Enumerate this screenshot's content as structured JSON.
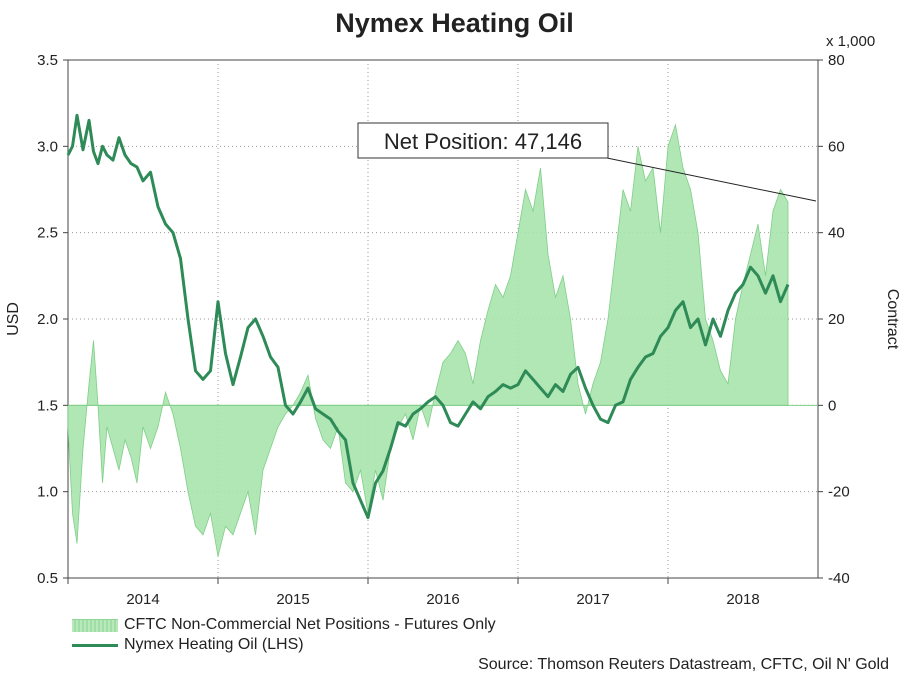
{
  "title": "Nymex Heating Oil",
  "y_left_label": "USD",
  "y_right_label": "Contract",
  "y_right_multiplier": "x 1,000",
  "annotation": "Net Position: 47,146",
  "legend": {
    "area": "CFTC Non-Commercial Net Positions - Futures Only",
    "line": "Nymex Heating Oil (LHS)"
  },
  "source": "Source: Thomson Reuters Datastream, CFTC, Oil N' Gold",
  "colors": {
    "area_fill": "#a8e3ad",
    "area_edge": "#7fcf88",
    "line": "#2e8b57"
  },
  "chart_data": {
    "type": "line",
    "x_range": [
      2013.5,
      2018.5
    ],
    "x_ticks": [
      "2014",
      "2015",
      "2016",
      "2017",
      "2018"
    ],
    "y_left_ticks": [
      "0.5",
      "1.0",
      "1.5",
      "2.0",
      "2.5",
      "3.0",
      "3.5"
    ],
    "y_left_range": [
      0.5,
      3.5
    ],
    "y_right_ticks": [
      "-40",
      "-20",
      "0",
      "20",
      "40",
      "60",
      "80"
    ],
    "y_right_range": [
      -40,
      80
    ],
    "grid": true,
    "series": [
      {
        "name": "CFTC Non-Commercial Net Positions - Futures Only",
        "axis": "right",
        "kind": "area",
        "x": [
          2013.5,
          2013.53,
          2013.56,
          2013.6,
          2013.64,
          2013.67,
          2013.7,
          2013.73,
          2013.76,
          2013.8,
          2013.84,
          2013.88,
          2013.92,
          2013.96,
          2014.0,
          2014.05,
          2014.1,
          2014.15,
          2014.2,
          2014.25,
          2014.3,
          2014.35,
          2014.4,
          2014.45,
          2014.5,
          2014.55,
          2014.6,
          2014.65,
          2014.7,
          2014.75,
          2014.8,
          2014.85,
          2014.9,
          2014.95,
          2015.0,
          2015.05,
          2015.1,
          2015.15,
          2015.2,
          2015.25,
          2015.3,
          2015.35,
          2015.4,
          2015.45,
          2015.5,
          2015.55,
          2015.6,
          2015.65,
          2015.7,
          2015.75,
          2015.8,
          2015.85,
          2015.9,
          2015.95,
          2016.0,
          2016.05,
          2016.1,
          2016.15,
          2016.2,
          2016.25,
          2016.3,
          2016.35,
          2016.4,
          2016.45,
          2016.5,
          2016.55,
          2016.6,
          2016.65,
          2016.7,
          2016.75,
          2016.8,
          2016.85,
          2016.9,
          2016.95,
          2017.0,
          2017.05,
          2017.1,
          2017.15,
          2017.2,
          2017.25,
          2017.3,
          2017.35,
          2017.4,
          2017.45,
          2017.5,
          2017.55,
          2017.6,
          2017.65,
          2017.7,
          2017.75,
          2017.8,
          2017.85,
          2017.9,
          2017.95,
          2018.0,
          2018.05,
          2018.1,
          2018.15,
          2018.2,
          2018.25,
          2018.3
        ],
        "values": [
          -5,
          -25,
          -32,
          -10,
          5,
          15,
          0,
          -18,
          -5,
          -10,
          -15,
          -8,
          -12,
          -18,
          -5,
          -10,
          -5,
          3,
          -2,
          -10,
          -20,
          -28,
          -30,
          -25,
          -35,
          -28,
          -30,
          -25,
          -20,
          -30,
          -15,
          -10,
          -5,
          -2,
          0,
          3,
          7,
          -3,
          -8,
          -10,
          -5,
          -18,
          -20,
          -15,
          -25,
          -15,
          -22,
          -10,
          -5,
          -2,
          -8,
          0,
          -5,
          3,
          10,
          12,
          15,
          12,
          5,
          15,
          22,
          28,
          25,
          30,
          40,
          50,
          45,
          55,
          35,
          25,
          30,
          20,
          5,
          -2,
          5,
          10,
          20,
          35,
          50,
          45,
          60,
          52,
          55,
          40,
          60,
          65,
          55,
          50,
          40,
          20,
          15,
          8,
          5,
          20,
          28,
          35,
          42,
          30,
          45,
          50,
          47.1
        ]
      },
      {
        "name": "Nymex Heating Oil (LHS)",
        "axis": "left",
        "kind": "line",
        "x": [
          2013.5,
          2013.53,
          2013.56,
          2013.6,
          2013.64,
          2013.67,
          2013.7,
          2013.73,
          2013.76,
          2013.8,
          2013.84,
          2013.88,
          2013.92,
          2013.96,
          2014.0,
          2014.05,
          2014.1,
          2014.15,
          2014.2,
          2014.25,
          2014.3,
          2014.35,
          2014.4,
          2014.45,
          2014.5,
          2014.55,
          2014.6,
          2014.65,
          2014.7,
          2014.75,
          2014.8,
          2014.85,
          2014.9,
          2014.95,
          2015.0,
          2015.05,
          2015.1,
          2015.15,
          2015.2,
          2015.25,
          2015.3,
          2015.35,
          2015.4,
          2015.45,
          2015.5,
          2015.55,
          2015.6,
          2015.65,
          2015.7,
          2015.75,
          2015.8,
          2015.85,
          2015.9,
          2015.95,
          2016.0,
          2016.05,
          2016.1,
          2016.15,
          2016.2,
          2016.25,
          2016.3,
          2016.35,
          2016.4,
          2016.45,
          2016.5,
          2016.55,
          2016.6,
          2016.65,
          2016.7,
          2016.75,
          2016.8,
          2016.85,
          2016.9,
          2016.95,
          2017.0,
          2017.05,
          2017.1,
          2017.15,
          2017.2,
          2017.25,
          2017.3,
          2017.35,
          2017.4,
          2017.45,
          2017.5,
          2017.55,
          2017.6,
          2017.65,
          2017.7,
          2017.75,
          2017.8,
          2017.85,
          2017.9,
          2017.95,
          2018.0,
          2018.05,
          2018.1,
          2018.15,
          2018.2,
          2018.25,
          2018.3
        ],
        "values": [
          2.95,
          3.0,
          3.18,
          2.98,
          3.15,
          2.97,
          2.9,
          3.0,
          2.95,
          2.92,
          3.05,
          2.95,
          2.9,
          2.88,
          2.8,
          2.85,
          2.65,
          2.55,
          2.5,
          2.35,
          2.0,
          1.7,
          1.65,
          1.7,
          2.1,
          1.8,
          1.62,
          1.78,
          1.95,
          2.0,
          1.9,
          1.78,
          1.72,
          1.5,
          1.45,
          1.52,
          1.6,
          1.48,
          1.45,
          1.42,
          1.35,
          1.3,
          1.05,
          0.95,
          0.85,
          1.05,
          1.12,
          1.25,
          1.4,
          1.38,
          1.45,
          1.48,
          1.52,
          1.55,
          1.5,
          1.4,
          1.38,
          1.45,
          1.52,
          1.48,
          1.55,
          1.58,
          1.62,
          1.6,
          1.62,
          1.7,
          1.65,
          1.6,
          1.55,
          1.62,
          1.58,
          1.68,
          1.72,
          1.6,
          1.5,
          1.42,
          1.4,
          1.5,
          1.52,
          1.65,
          1.72,
          1.78,
          1.8,
          1.9,
          1.95,
          2.05,
          2.1,
          1.95,
          2.0,
          1.85,
          2.0,
          1.9,
          2.05,
          2.15,
          2.2,
          2.3,
          2.25,
          2.15,
          2.25,
          2.1,
          2.2
        ]
      }
    ]
  }
}
